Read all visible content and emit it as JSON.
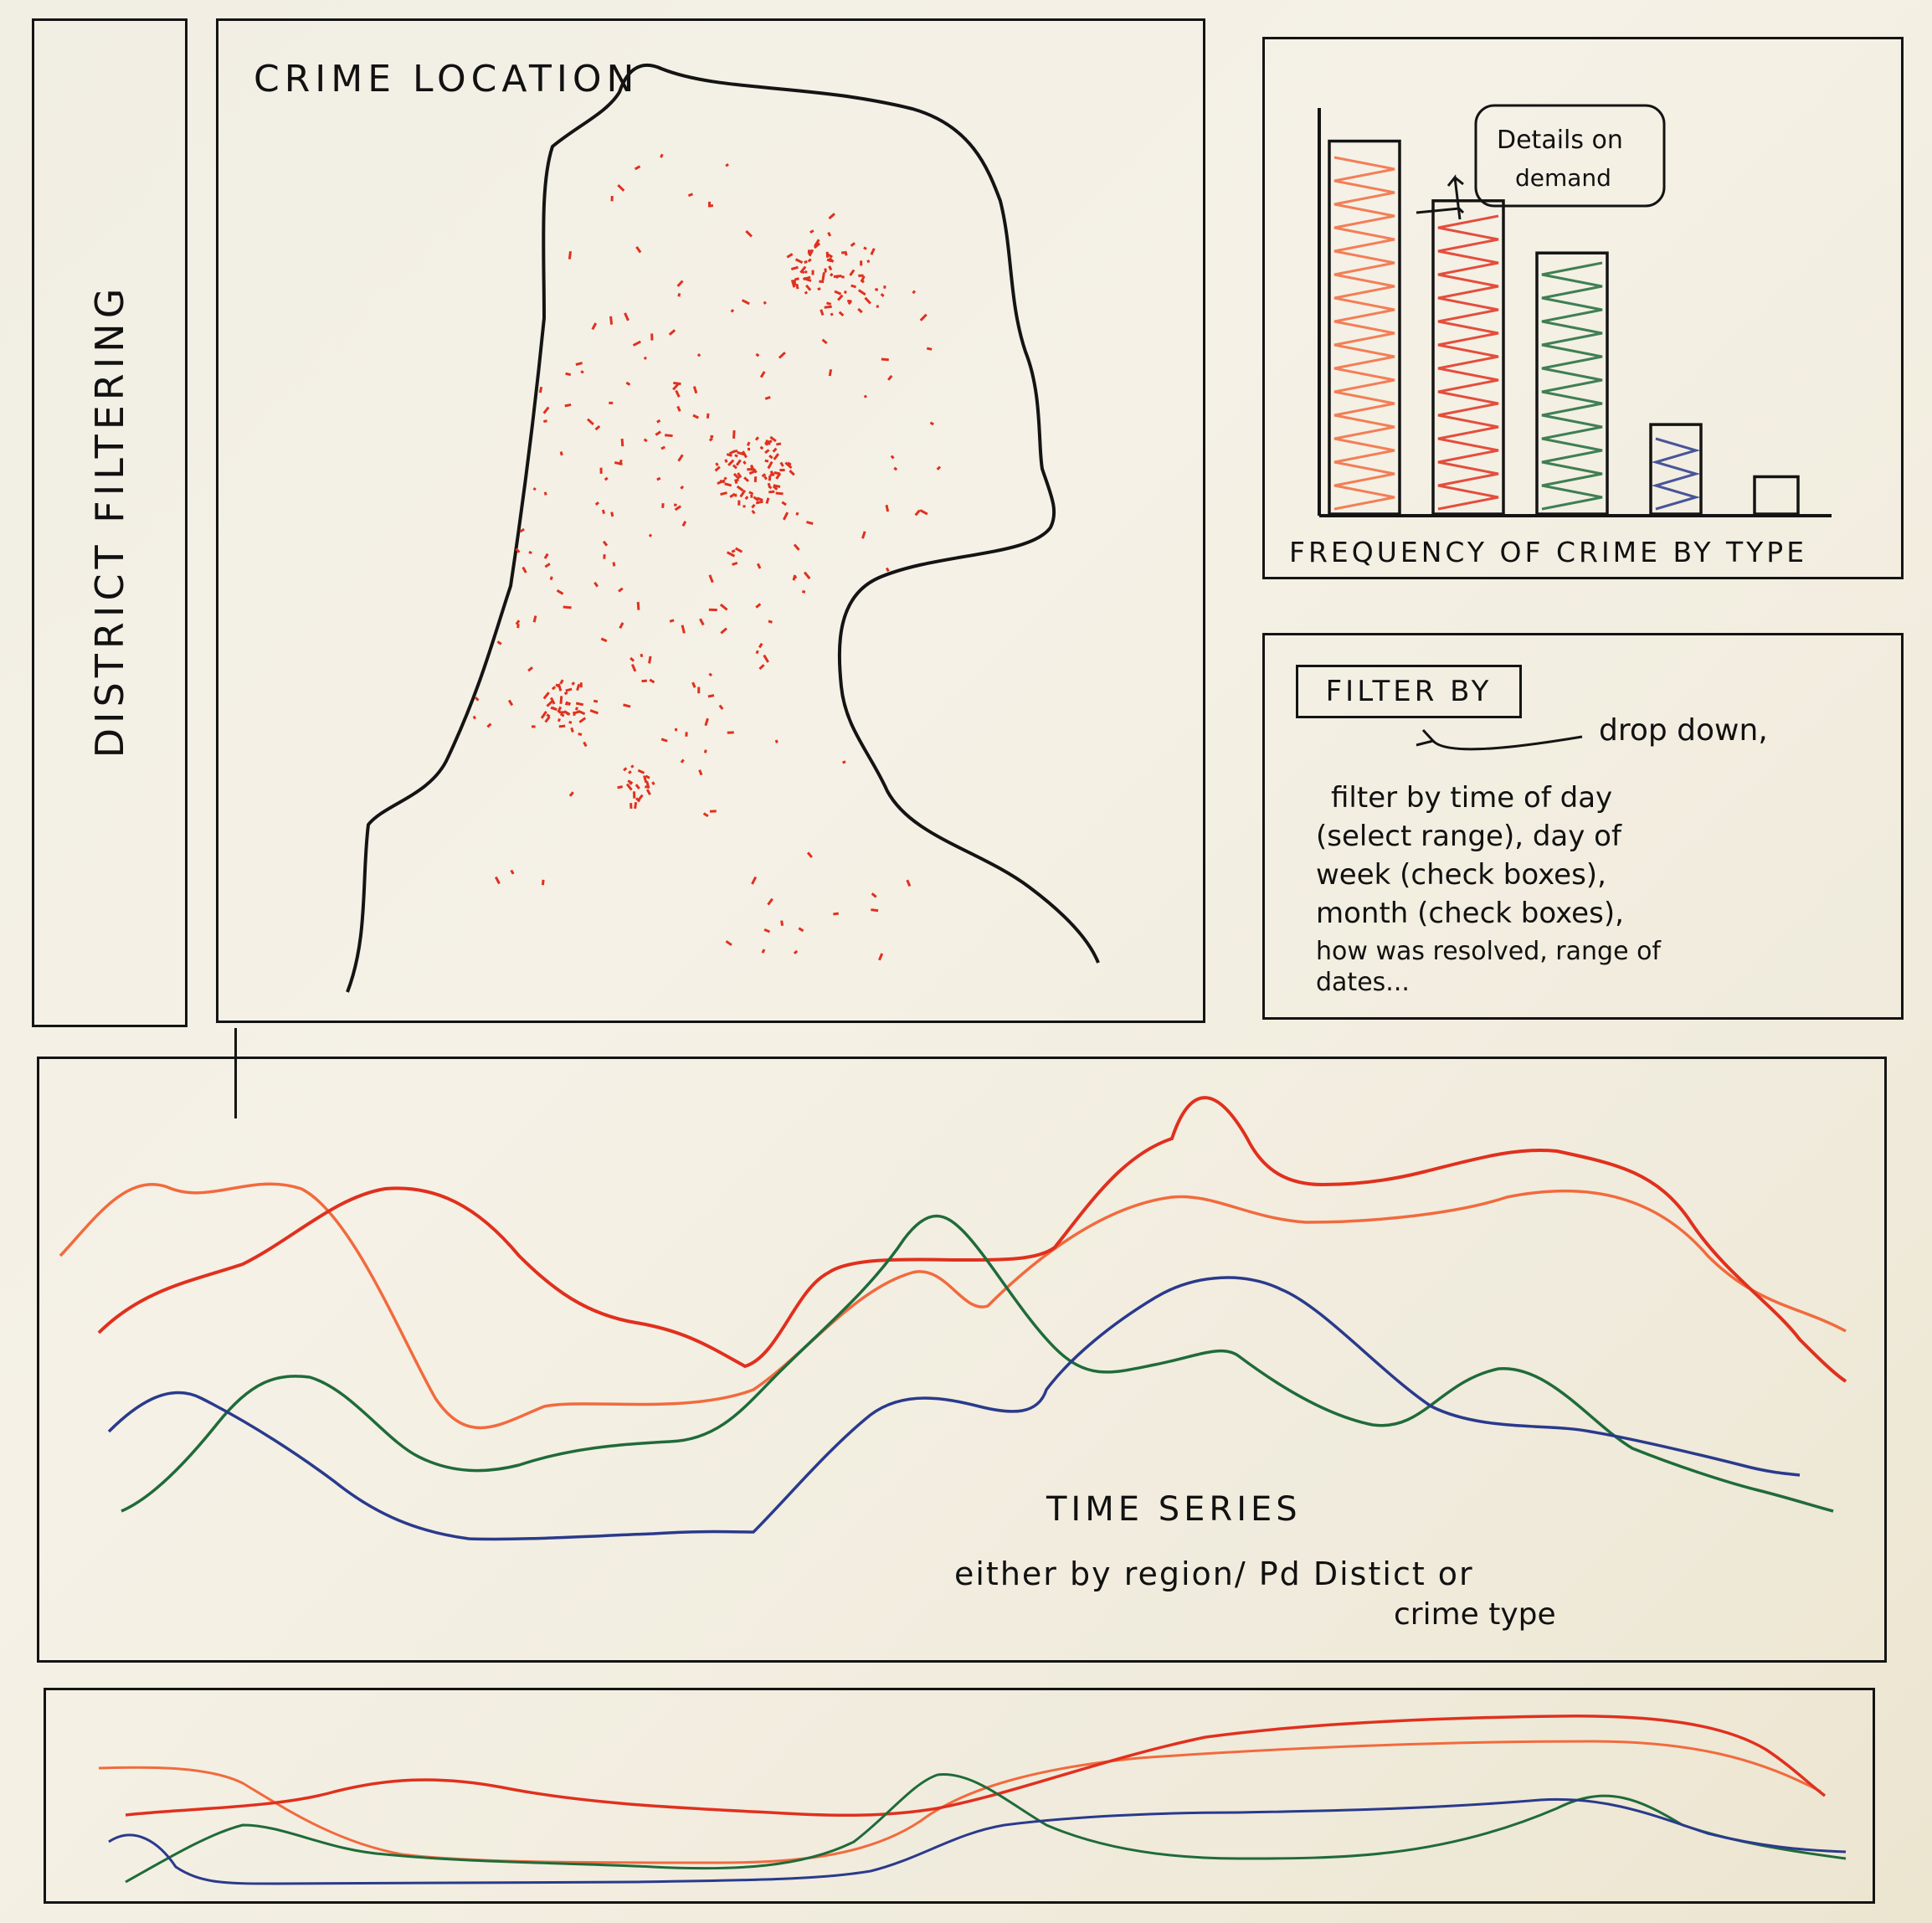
{
  "district_panel": {
    "label": "DISTRICT FILTERING"
  },
  "map_panel": {
    "title": "CRIME LOCATION"
  },
  "bar_panel": {
    "caption": "FREQUENCY OF CRIME BY TYPE",
    "callout_line1": "Details on",
    "callout_line2": "demand"
  },
  "filter_panel": {
    "button": "FILTER BY",
    "arrow_note": "drop down,",
    "notes": [
      "filter by time of day",
      "(select range), day of",
      "week (check boxes),",
      "month (check boxes),",
      "how was resolved, range of",
      "dates..."
    ]
  },
  "timeseries_panel": {
    "title": "TIME SERIES",
    "subtitle_line1": "either by region/ Pd Distict or",
    "subtitle_line2": "crime type"
  },
  "colors": {
    "red": "#e0301e",
    "orange": "#f26a3d",
    "green": "#1f6b3a",
    "blue": "#2a3a8c",
    "ink": "#141414"
  },
  "chart_data": {
    "type": "bar",
    "categories": [
      "",
      "",
      "",
      "",
      ""
    ],
    "values": [
      100,
      84,
      70,
      24,
      10
    ],
    "title": "",
    "xlabel": "FREQUENCY OF CRIME BY TYPE",
    "ylabel": "",
    "ylim": [
      0,
      110
    ]
  }
}
